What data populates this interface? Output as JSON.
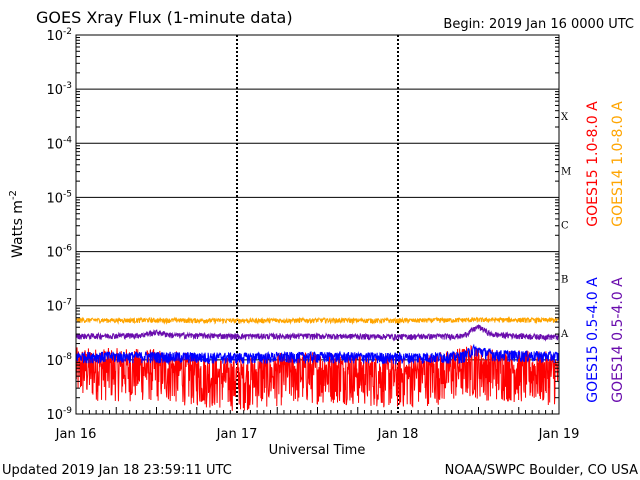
{
  "header": {
    "title": "GOES Xray Flux (1-minute data)",
    "begin_label": "Begin:  2019 Jan 16 0000 UTC"
  },
  "footer": {
    "updated": "Updated 2019 Jan 18 23:59:11 UTC",
    "source": "NOAA/SWPC Boulder, CO USA"
  },
  "chart_data": {
    "type": "line",
    "title": "GOES Xray Flux (1-minute data)",
    "xlabel": "Universal Time",
    "ylabel": "Watts m⁻²",
    "y_scale": "log",
    "ylim": [
      1e-09,
      0.01
    ],
    "x_ticks": [
      "Jan 16",
      "Jan 17",
      "Jan 18",
      "Jan 19"
    ],
    "y_ticks": [
      {
        "base": "10",
        "exp": "-2",
        "value": 0.01
      },
      {
        "base": "10",
        "exp": "-3",
        "value": 0.001
      },
      {
        "base": "10",
        "exp": "-4",
        "value": 0.0001
      },
      {
        "base": "10",
        "exp": "-5",
        "value": 1e-05
      },
      {
        "base": "10",
        "exp": "-6",
        "value": 1e-06
      },
      {
        "base": "10",
        "exp": "-7",
        "value": 1e-07
      },
      {
        "base": "10",
        "exp": "-8",
        "value": 1e-08
      },
      {
        "base": "10",
        "exp": "-9",
        "value": 1e-09
      }
    ],
    "flare_classes": [
      {
        "label": "X",
        "lower": 0.0001,
        "upper": 0.001
      },
      {
        "label": "M",
        "lower": 1e-05,
        "upper": 0.0001
      },
      {
        "label": "C",
        "lower": 1e-06,
        "upper": 1e-05
      },
      {
        "label": "B",
        "lower": 1e-07,
        "upper": 1e-06
      },
      {
        "label": "A",
        "lower": 1e-08,
        "upper": 1e-07
      }
    ],
    "x_days": [
      0,
      3
    ],
    "grid": true,
    "series": [
      {
        "name": "GOES15 1.0-8.0 A",
        "color": "#ff0000",
        "noise": 0.55,
        "points": [
          [
            0,
            8e-09
          ],
          [
            0.5,
            7.5e-09
          ],
          [
            1.0,
            5e-09
          ],
          [
            1.3,
            6.5e-09
          ],
          [
            1.6,
            7e-09
          ],
          [
            2.0,
            5.5e-09
          ],
          [
            2.3,
            7e-09
          ],
          [
            2.45,
            9e-09
          ],
          [
            2.55,
            8e-09
          ],
          [
            2.8,
            7e-09
          ],
          [
            3.0,
            6.5e-09
          ]
        ]
      },
      {
        "name": "GOES14 1.0-8.0 A",
        "color": "#ffa500",
        "noise": 0.05,
        "points": [
          [
            0,
            5.5e-08
          ],
          [
            0.5,
            5.5e-08
          ],
          [
            1.0,
            5.4e-08
          ],
          [
            1.5,
            5.5e-08
          ],
          [
            2.0,
            5.4e-08
          ],
          [
            2.5,
            5.6e-08
          ],
          [
            3.0,
            5.5e-08
          ]
        ]
      },
      {
        "name": "GOES15 0.5-4.0 A",
        "color": "#0000ff",
        "noise": 0.12,
        "points": [
          [
            0,
            1.2e-08
          ],
          [
            0.5,
            1.2e-08
          ],
          [
            1.0,
            1.15e-08
          ],
          [
            1.5,
            1.2e-08
          ],
          [
            2.0,
            1.15e-08
          ],
          [
            2.4,
            1.2e-08
          ],
          [
            2.47,
            1.6e-08
          ],
          [
            2.6,
            1.3e-08
          ],
          [
            3.0,
            1.2e-08
          ]
        ]
      },
      {
        "name": "GOES14 0.5-4.0 A",
        "color": "#6a0dad",
        "noise": 0.06,
        "points": [
          [
            0,
            2.8e-08
          ],
          [
            0.4,
            2.9e-08
          ],
          [
            0.5,
            3.3e-08
          ],
          [
            0.6,
            2.9e-08
          ],
          [
            1.0,
            2.8e-08
          ],
          [
            1.5,
            2.8e-08
          ],
          [
            2.0,
            2.75e-08
          ],
          [
            2.4,
            2.8e-08
          ],
          [
            2.5,
            4.2e-08
          ],
          [
            2.58,
            3e-08
          ],
          [
            2.8,
            2.8e-08
          ],
          [
            3.0,
            2.7e-08
          ]
        ]
      }
    ]
  }
}
